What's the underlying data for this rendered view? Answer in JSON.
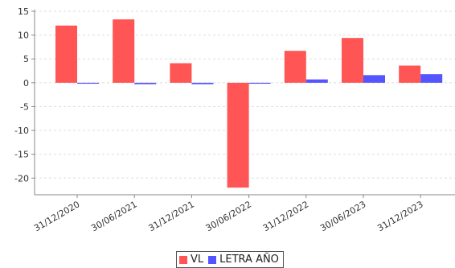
{
  "chart_data": {
    "type": "bar",
    "categories": [
      "31/12/2020",
      "30/06/2021",
      "31/12/2021",
      "30/06/2022",
      "31/12/2022",
      "30/06/2023",
      "31/12/2023"
    ],
    "series": [
      {
        "name": "VL",
        "color": "#ff5555",
        "values": [
          12.0,
          13.3,
          4.1,
          -22.0,
          6.7,
          9.4,
          3.6
        ]
      },
      {
        "name": "LETRA AÑO",
        "color": "#5555ff",
        "values": [
          -0.2,
          -0.3,
          -0.3,
          -0.1,
          0.7,
          1.6,
          1.8
        ]
      }
    ],
    "ylim": [
      -23.5,
      15
    ],
    "yticks": [
      -20,
      -15,
      -10,
      -5,
      0,
      5,
      10,
      15
    ],
    "grid": true,
    "title": "",
    "xlabel": "",
    "ylabel": "",
    "legend_position": "bottom-center"
  }
}
